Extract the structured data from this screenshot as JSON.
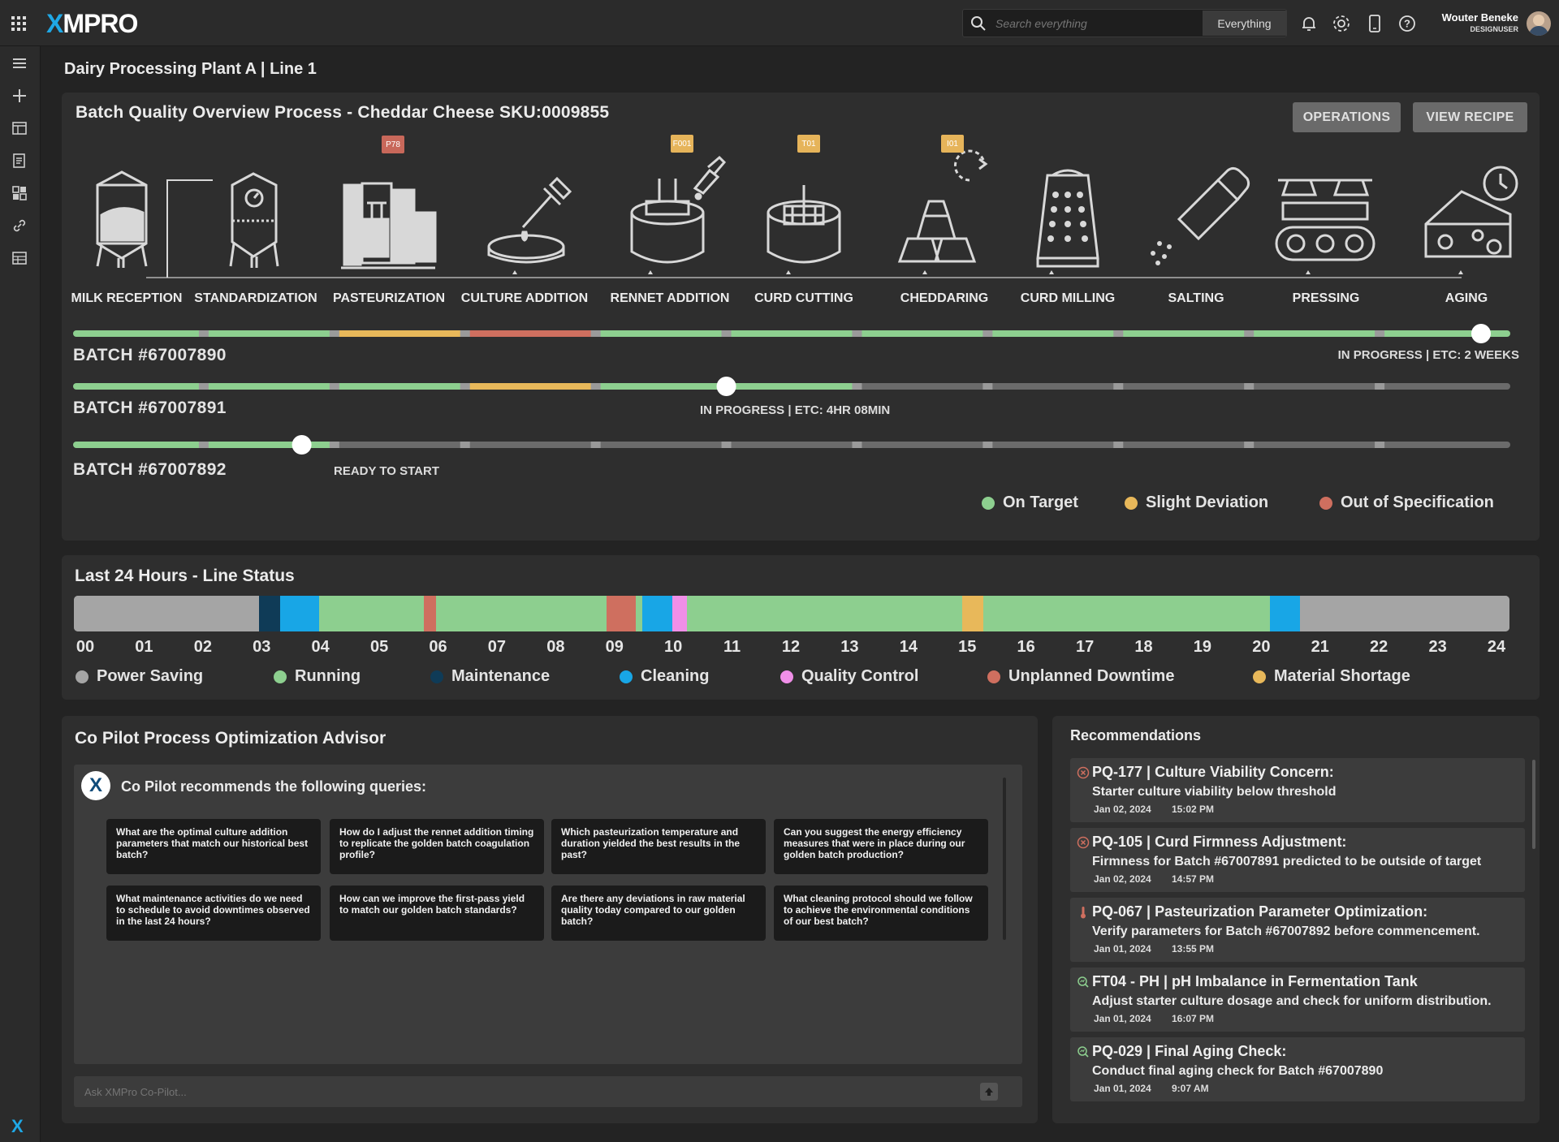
{
  "app": {
    "logo": "XMPRO",
    "search_placeholder": "Search everything",
    "search_scope": "Everything",
    "user_name": "Wouter Beneke",
    "user_role": "DESIGNUSER"
  },
  "page": {
    "breadcrumb": "Dairy Processing Plant A | Line 1"
  },
  "process": {
    "title": "Batch Quality Overview Process - Cheddar Cheese SKU:0009855",
    "buttons": {
      "operations": "OPERATIONS",
      "view_recipe": "VIEW RECIPE"
    },
    "steps": [
      {
        "label": "MILK RECEPTION",
        "icon": "silo-icon"
      },
      {
        "label": "STANDARDIZATION",
        "icon": "tank-gauge-icon"
      },
      {
        "label": "PASTEURIZATION",
        "icon": "pasteurizer-icon",
        "tag": "P78",
        "tag_color": "#c8685a"
      },
      {
        "label": "CULTURE ADDITION",
        "icon": "dropper-dish-icon"
      },
      {
        "label": "RENNET ADDITION",
        "icon": "vat-dropper-icon",
        "tag": "F001",
        "tag_color": "#e6b45a"
      },
      {
        "label": "CURD CUTTING",
        "icon": "curd-cutter-icon",
        "tag": "T01",
        "tag_color": "#e6b45a"
      },
      {
        "label": "CHEDDARING",
        "icon": "stacked-blocks-icon",
        "tag": "I01",
        "tag_color": "#e6b45a"
      },
      {
        "label": "CURD MILLING",
        "icon": "grater-icon"
      },
      {
        "label": "SALTING",
        "icon": "salt-shaker-icon"
      },
      {
        "label": "PRESSING",
        "icon": "press-icon"
      },
      {
        "label": "AGING",
        "icon": "cheese-clock-icon"
      }
    ],
    "batches": [
      {
        "name": "BATCH #67007890",
        "status": "IN PROGRESS  | ETC: 2 WEEKS",
        "progress_step": 11,
        "segments": [
          "on_target",
          "on_target",
          "slight_deviation",
          "out_of_spec",
          "on_target",
          "on_target",
          "on_target",
          "on_target",
          "on_target",
          "on_target",
          "on_target"
        ]
      },
      {
        "name": "BATCH #67007891",
        "status": "IN PROGRESS | ETC: 4HR 08MIN",
        "progress_step": 5,
        "segments": [
          "on_target",
          "on_target",
          "on_target",
          "slight_deviation",
          "on_target",
          "on_target",
          "pending",
          "pending",
          "pending",
          "pending",
          "pending"
        ]
      },
      {
        "name": "BATCH #67007892",
        "status": "READY TO START",
        "progress_step": 1.75,
        "segments": [
          "on_target",
          "on_target",
          "pending",
          "pending",
          "pending",
          "pending",
          "pending",
          "pending",
          "pending",
          "pending",
          "pending"
        ]
      }
    ],
    "legend": [
      {
        "label": "On Target",
        "color": "#8dcf8f"
      },
      {
        "label": "Slight Deviation",
        "color": "#e8b85a"
      },
      {
        "label": "Out of Specification",
        "color": "#cf6f5f"
      }
    ]
  },
  "line_status": {
    "title": "Last 24 Hours - Line Status",
    "hours": [
      "00",
      "01",
      "02",
      "03",
      "04",
      "05",
      "06",
      "07",
      "08",
      "09",
      "10",
      "11",
      "12",
      "13",
      "14",
      "15",
      "16",
      "17",
      "18",
      "19",
      "20",
      "21",
      "22",
      "23",
      "24"
    ],
    "segments": [
      {
        "state": "Power Saving",
        "start": 0,
        "end": 3.1
      },
      {
        "state": "Maintenance",
        "start": 3.1,
        "end": 3.45
      },
      {
        "state": "Cleaning",
        "start": 3.45,
        "end": 4.1
      },
      {
        "state": "Running",
        "start": 4.1,
        "end": 5.85
      },
      {
        "state": "Unplanned Downtime",
        "start": 5.85,
        "end": 6.05
      },
      {
        "state": "Running",
        "start": 6.05,
        "end": 8.9
      },
      {
        "state": "Unplanned Downtime",
        "start": 8.9,
        "end": 9.4
      },
      {
        "state": "Running",
        "start": 9.4,
        "end": 9.5
      },
      {
        "state": "Cleaning",
        "start": 9.5,
        "end": 10.0
      },
      {
        "state": "Quality Control",
        "start": 10.0,
        "end": 10.25
      },
      {
        "state": "Running",
        "start": 10.25,
        "end": 14.85
      },
      {
        "state": "Material Shortage",
        "start": 14.85,
        "end": 15.2
      },
      {
        "state": "Running",
        "start": 15.2,
        "end": 20.0
      },
      {
        "state": "Cleaning",
        "start": 20.0,
        "end": 20.5
      },
      {
        "state": "Power Saving",
        "start": 20.5,
        "end": 24
      }
    ],
    "legend": [
      {
        "label": "Power Saving",
        "color": "#a5a5a5"
      },
      {
        "label": "Running",
        "color": "#8dcf8f"
      },
      {
        "label": "Maintenance",
        "color": "#0f3b57"
      },
      {
        "label": "Cleaning",
        "color": "#18a6e6"
      },
      {
        "label": "Quality Control",
        "color": "#f08fe8"
      },
      {
        "label": "Unplanned Downtime",
        "color": "#cf6f5f"
      },
      {
        "label": "Material Shortage",
        "color": "#e8b85a"
      }
    ]
  },
  "copilot": {
    "title": "Co Pilot Process Optimization Advisor",
    "intro": "Co Pilot recommends the following queries:",
    "queries": [
      "What are the optimal culture addition parameters that match our historical best batch?",
      "How do I adjust the rennet addition timing to replicate the golden batch coagulation profile?",
      "Which pasteurization temperature and duration yielded the best results in the past?",
      "Can you suggest the energy efficiency measures that were in place during our golden batch production?",
      "What maintenance activities do we need to schedule to avoid downtimes observed in the last 24 hours?",
      "How can we improve the first-pass yield to match our golden batch standards?",
      "Are there any deviations in raw material quality today compared to our golden batch?",
      "What cleaning protocol should we follow to achieve the environmental conditions of our best batch?"
    ],
    "ask_placeholder": "Ask XMPro Co-Pilot..."
  },
  "recommendations": {
    "title": "Recommendations",
    "items": [
      {
        "icon": "error-circle-icon",
        "title": "PQ-177 | Culture Viability Concern:",
        "desc": "Starter culture viability below threshold",
        "date": "Jan 02, 2024",
        "time": "15:02 PM"
      },
      {
        "icon": "error-circle-icon",
        "title": "PQ-105 | Curd Firmness Adjustment:",
        "desc": "Firmness for Batch #67007891 predicted to be outside of target",
        "date": "Jan 02, 2024",
        "time": "14:57 PM"
      },
      {
        "icon": "thermometer-icon",
        "title": "PQ-067 | Pasteurization Parameter Optimization:",
        "desc": "Verify parameters for Batch #67007892 before commencement.",
        "date": "Jan 01, 2024",
        "time": "13:55 PM"
      },
      {
        "icon": "search-chart-icon",
        "title": "FT04 - PH | pH Imbalance in Fermentation Tank",
        "desc": "Adjust starter culture dosage and check for uniform distribution.",
        "date": "Jan 01, 2024",
        "time": "16:07 PM"
      },
      {
        "icon": "search-chart-icon",
        "title": "PQ-029 | Final Aging Check:",
        "desc": "Conduct final aging check for Batch #67007890",
        "date": "Jan 01, 2024",
        "time": "9:07 AM"
      }
    ]
  },
  "colors": {
    "on_target": "#8dcf8f",
    "slight_deviation": "#e8b85a",
    "out_of_spec": "#cf6f5f",
    "pending": "#6b6b6b",
    "tick": "#9a9a9a"
  }
}
